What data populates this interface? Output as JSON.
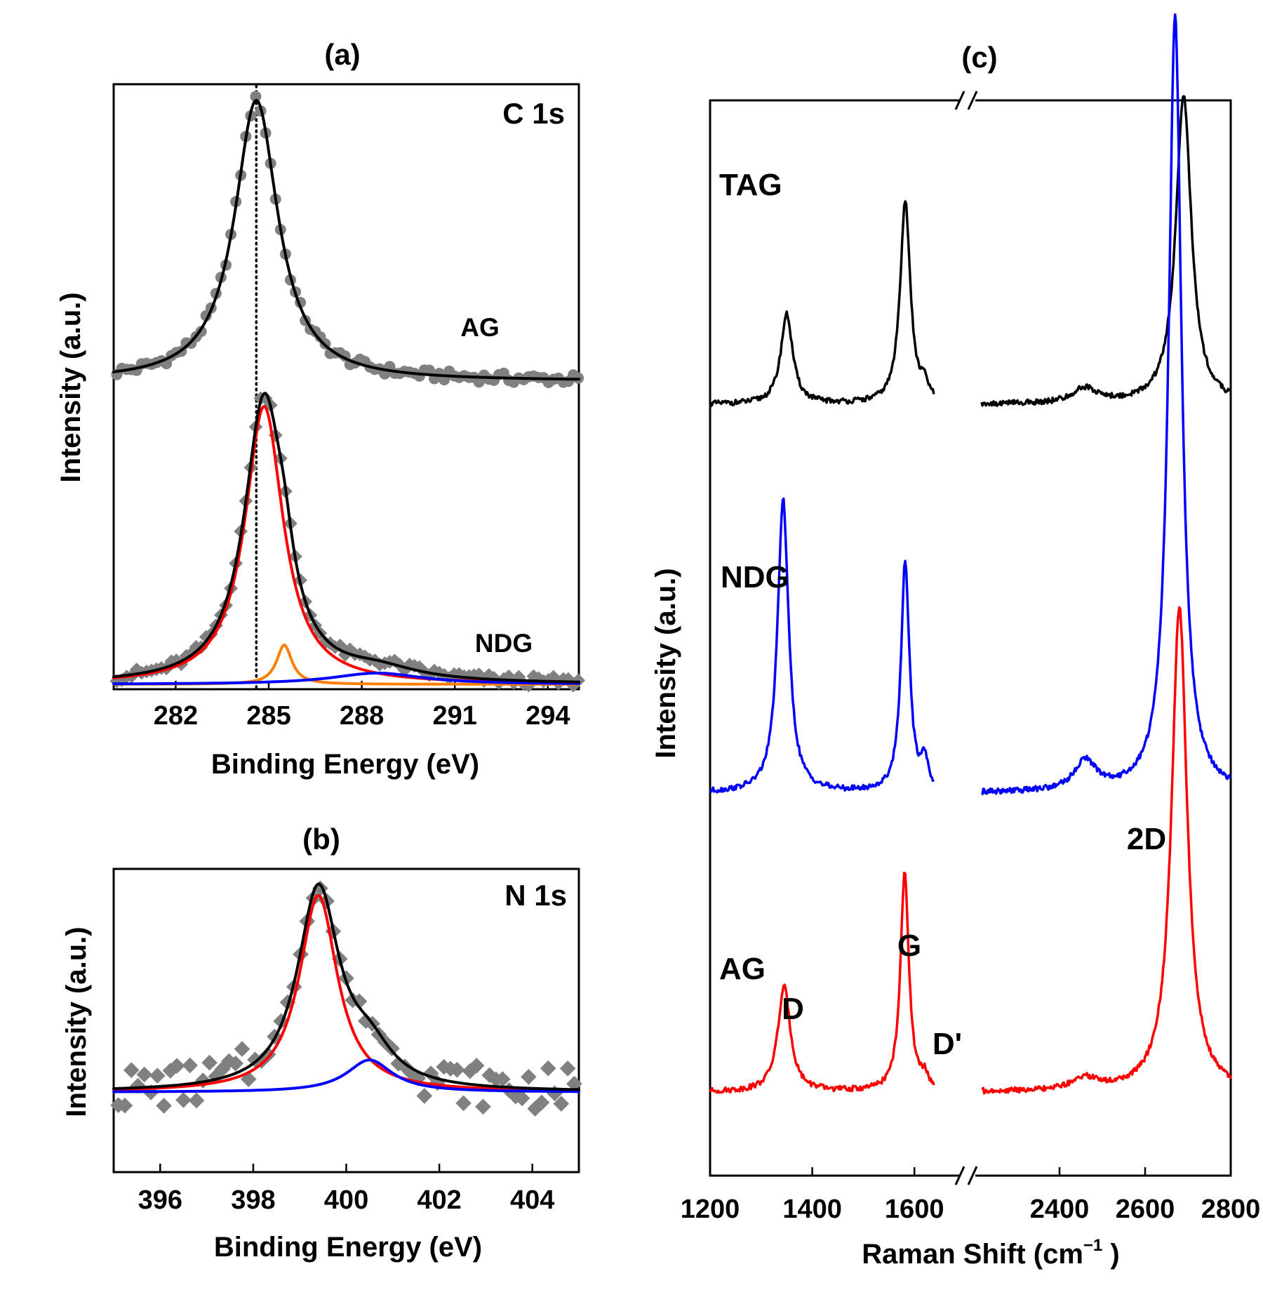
{
  "figure": {
    "description_free": true
  },
  "chart_data": [
    {
      "id": "a",
      "type": "line",
      "panel_label": "(a)",
      "title": "C 1s",
      "xlabel": "Binding Energy (eV)",
      "ylabel": "Intensity (a.u.)",
      "xlim": [
        280.0,
        295.0
      ],
      "xticks": [
        "282",
        "285",
        "288",
        "291",
        "294"
      ],
      "xtick_values": [
        282,
        285,
        288,
        291,
        294
      ],
      "reference_line_x": 284.6,
      "series": [
        {
          "name": "AG",
          "label": "AG",
          "role": "fit",
          "color": "#000000",
          "offset": 1.08,
          "peaks": [
            [
              284.6,
              1.0,
              0.85
            ]
          ],
          "marker": "circle",
          "marker_color": "#808080"
        },
        {
          "name": "NDG envelope",
          "label": "NDG",
          "role": "fit",
          "color": "#000000",
          "offset": 0.0,
          "peaks": [
            [
              284.85,
              1.0,
              0.78
            ],
            [
              285.5,
              0.13,
              0.35
            ],
            [
              288.5,
              0.04,
              1.6
            ]
          ],
          "marker": "diamond",
          "marker_color": "#808080"
        },
        {
          "name": "NDG C=C",
          "role": "component",
          "color": "#ff0000",
          "offset": 0.0,
          "peaks": [
            [
              284.85,
              0.99,
              0.75
            ]
          ]
        },
        {
          "name": "NDG C-N",
          "role": "component",
          "color": "#ff8000",
          "offset": 0.0,
          "peaks": [
            [
              285.5,
              0.14,
              0.3
            ]
          ]
        },
        {
          "name": "NDG C-O",
          "role": "component",
          "color": "#0000ff",
          "offset": 0.0,
          "peaks": [
            [
              288.5,
              0.04,
              1.8
            ]
          ]
        }
      ]
    },
    {
      "id": "b",
      "type": "line",
      "panel_label": "(b)",
      "title": "N 1s",
      "xlabel": "Binding Energy (eV)",
      "ylabel": "Intensity (a.u.)",
      "xlim": [
        395.0,
        405.0
      ],
      "xticks": [
        "396",
        "398",
        "400",
        "402",
        "404"
      ],
      "xtick_values": [
        396,
        398,
        400,
        402,
        404
      ],
      "series": [
        {
          "name": "N 1s envelope",
          "role": "fit",
          "color": "#000000",
          "peaks": [
            [
              399.4,
              1.0,
              0.55
            ],
            [
              400.5,
              0.16,
              0.6
            ]
          ],
          "marker": "diamond",
          "marker_color": "#808080"
        },
        {
          "name": "N component 1",
          "role": "component",
          "color": "#ff0000",
          "peaks": [
            [
              399.4,
              0.98,
              0.5
            ]
          ]
        },
        {
          "name": "N component 2",
          "role": "component",
          "color": "#0000ff",
          "peaks": [
            [
              400.5,
              0.16,
              0.6
            ]
          ]
        }
      ]
    },
    {
      "id": "c",
      "type": "line",
      "panel_label": "(c)",
      "xlabel_main": "Raman Shift (cm",
      "xlabel_sup": "−1",
      "xlabel_end": " )",
      "ylabel": "Intensity (a.u.)",
      "axis_break": true,
      "xlim_left": [
        1200,
        1700
      ],
      "xlim_right": [
        2200,
        2800
      ],
      "xticks": [
        "1200",
        "1400",
        "1600",
        "2400",
        "2600",
        "2800"
      ],
      "xtick_values": [
        1200,
        1400,
        1600,
        2400,
        2600,
        2800
      ],
      "series": [
        {
          "name": "TAG",
          "label": "TAG",
          "color": "#000000",
          "offset": 2.3,
          "peaks": [
            [
              1350,
              0.3,
              14
            ],
            [
              1582,
              0.68,
              12
            ],
            [
              1620,
              0.05,
              8
            ],
            [
              2460,
              0.05,
              35
            ],
            [
              2690,
              1.03,
              22
            ]
          ]
        },
        {
          "name": "NDG",
          "label": "NDG",
          "color": "#0000ff",
          "offset": 1.0,
          "peaks": [
            [
              1343,
              0.98,
              13
            ],
            [
              1582,
              0.77,
              10
            ],
            [
              1620,
              0.1,
              8
            ],
            [
              2460,
              0.1,
              30
            ],
            [
              2670,
              2.6,
              18
            ]
          ]
        },
        {
          "name": "AG",
          "label": "AG",
          "color": "#ff0000",
          "offset": 0.0,
          "peaks": [
            [
              1345,
              0.35,
              15
            ],
            [
              1581,
              0.73,
              10
            ],
            [
              1620,
              0.04,
              8
            ],
            [
              2460,
              0.04,
              35
            ],
            [
              2680,
              1.62,
              22
            ]
          ]
        }
      ],
      "annotations": [
        "D",
        "G",
        "D'",
        "2D"
      ]
    }
  ]
}
